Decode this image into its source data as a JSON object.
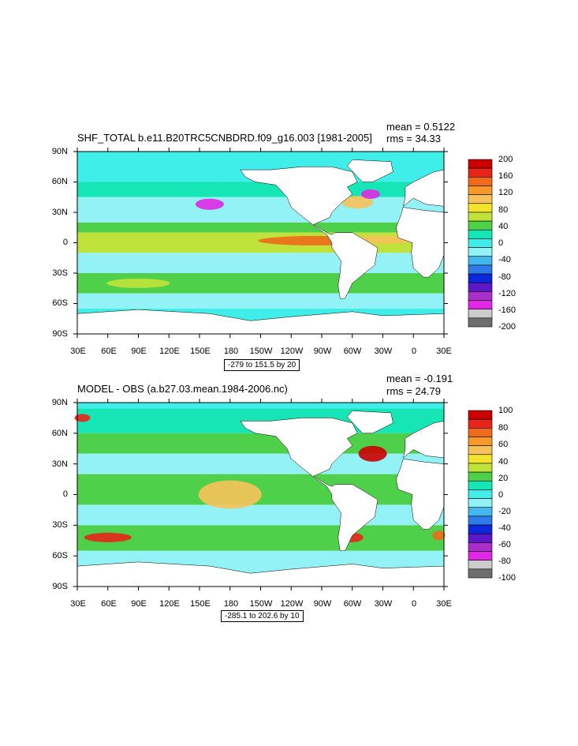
{
  "chart_data": [
    {
      "type": "heatmap",
      "title": "SHF_TOTAL b.e11.B20TRC5CNBDRD.f09_g16.003 [1981-2005]",
      "stats": {
        "mean": "mean = 0.5122",
        "rms": "rms = 34.33"
      },
      "contour_info": "-279 to 151.5 by 20",
      "xticks": [
        "30E",
        "60E",
        "90E",
        "120E",
        "150E",
        "180",
        "150W",
        "120W",
        "90W",
        "60W",
        "30W",
        "0",
        "30E"
      ],
      "yticks": [
        "90N",
        "60N",
        "30N",
        "0",
        "30S",
        "60S",
        "90S"
      ],
      "colorbar": {
        "labels": [
          "200",
          "160",
          "120",
          "80",
          "40",
          "0",
          "-40",
          "-80",
          "-120",
          "-160",
          "-200"
        ],
        "colors": [
          "#cc0000",
          "#e8251a",
          "#f06a1a",
          "#f59a2a",
          "#f7c25a",
          "#f3e52e",
          "#bfe33a",
          "#4fd04a",
          "#16e6b6",
          "#3feee8",
          "#93f2f5",
          "#43b8f0",
          "#2d7ae8",
          "#0d28dc",
          "#5c18c8",
          "#a830c8",
          "#e028e6",
          "#cccccc",
          "#6e6e6e"
        ]
      }
    },
    {
      "type": "heatmap",
      "title": "MODEL - OBS (a.b27.03.mean.1984-2006.nc)",
      "stats": {
        "mean": "mean = -0.191",
        "rms": "rms = 24.79"
      },
      "contour_info": "-285.1 to 202.6 by 10",
      "xticks": [
        "30E",
        "60E",
        "90E",
        "120E",
        "150E",
        "180",
        "150W",
        "120W",
        "90W",
        "60W",
        "30W",
        "0",
        "30E"
      ],
      "yticks": [
        "90N",
        "60N",
        "30N",
        "0",
        "30S",
        "60S",
        "90S"
      ],
      "colorbar": {
        "labels": [
          "100",
          "80",
          "60",
          "40",
          "20",
          "0",
          "-20",
          "-40",
          "-60",
          "-80",
          "-100"
        ],
        "colors": [
          "#cc0000",
          "#e8251a",
          "#f06a1a",
          "#f59a2a",
          "#f7c25a",
          "#f3e52e",
          "#bfe33a",
          "#4fd04a",
          "#16e6b6",
          "#3feee8",
          "#93f2f5",
          "#43b8f0",
          "#2d7ae8",
          "#0d28dc",
          "#5c18c8",
          "#a830c8",
          "#e028e6",
          "#cccccc",
          "#6e6e6e"
        ]
      }
    }
  ]
}
